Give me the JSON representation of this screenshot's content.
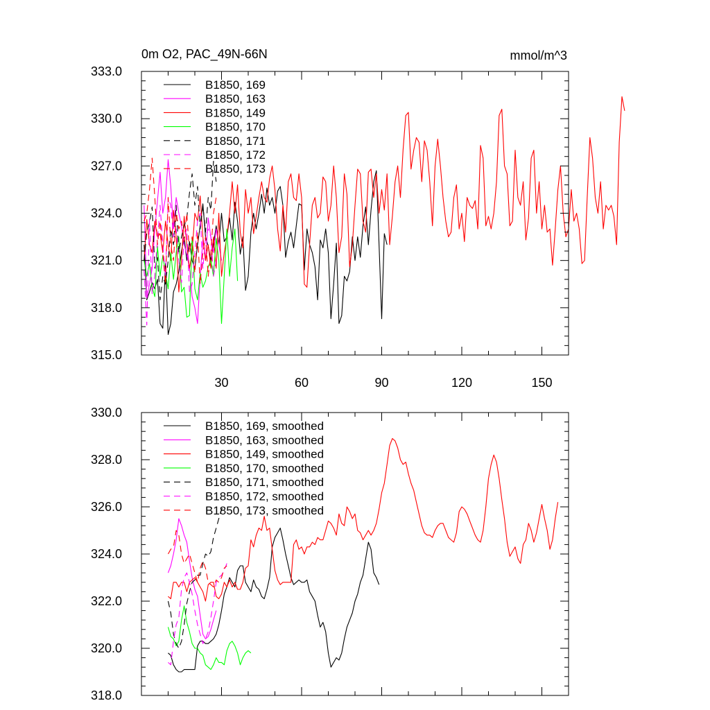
{
  "chart_data": [
    {
      "type": "line",
      "title": "0m O2, PAC_49N-66N",
      "units": "mmol/m^3",
      "xlim": [
        0,
        160
      ],
      "ylim": [
        315,
        333
      ],
      "x_ticks": [
        30,
        60,
        90,
        120,
        150
      ],
      "y_ticks": [
        315,
        318,
        321,
        324,
        327,
        330,
        333
      ],
      "y_tick_labels": [
        "315.0",
        "318.0",
        "321.0",
        "324.0",
        "327.0",
        "330.0",
        "333.0"
      ],
      "show_x_labels": true,
      "legend_position": "top-left",
      "grid": false,
      "series": [
        {
          "name": "B1850, 169",
          "color": "#000000",
          "dash": "solid",
          "x0": 1,
          "values": [
            322.0,
            318.5,
            319.0,
            319.6,
            319.2,
            319.8,
            317.0,
            316.7,
            320.8,
            316.3,
            317.0,
            319.0,
            319.5,
            320.3,
            321.6,
            322.5,
            321.0,
            322.2,
            321.0,
            320.5,
            322.0,
            323.2,
            324.6,
            322.5,
            321.9,
            321.0,
            322.0,
            323.2,
            322.0,
            324.0,
            322.2,
            322.5,
            323.7,
            322.3,
            324.7,
            323.5,
            321.4,
            322.5,
            319.1,
            320.0,
            322.8,
            324.0,
            323.0,
            324.0,
            325.2,
            324.0,
            325.6,
            324.5,
            325.0,
            324.0,
            325.4,
            325.7,
            324.5,
            321.2,
            322.2,
            322.8,
            321.8,
            323.2,
            324.6,
            324.5,
            320.4,
            323.0,
            322.0,
            321.5,
            320.6,
            318.5,
            322.3,
            321.8,
            323.0,
            321.5,
            317.3,
            319.5,
            322.1,
            317.0,
            317.5,
            320.0,
            319.7,
            320.3,
            322.5,
            321.0,
            322.5,
            321.2,
            323.2,
            324.4,
            322.0,
            324.2,
            326.0,
            326.7,
            322.0,
            317.3,
            322.7,
            322.0
          ]
        },
        {
          "name": "B1850, 163",
          "color": "#ff00ff",
          "dash": "solid",
          "x0": 1,
          "values": [
            324.5,
            318.6,
            319.5,
            320.5,
            323.0,
            324.8,
            326.6,
            324.0,
            325.0,
            327.4,
            325.7,
            323.0,
            325.0,
            324.0,
            323.2,
            322.0,
            321.4,
            320.5,
            318.7,
            318.0,
            317.0,
            320.0,
            322.3,
            321.0,
            323.7,
            322.5,
            321.5,
            323.0,
            322.0,
            321.0
          ]
        },
        {
          "name": "B1850, 149",
          "color": "#ff0000",
          "dash": "solid",
          "x0": 1,
          "values": [
            321.0,
            323.6,
            322.0,
            321.5,
            323.5,
            322.5,
            322.7,
            321.5,
            323.5,
            322.0,
            321.0,
            324.2,
            322.5,
            319.0,
            321.0,
            323.8,
            322.0,
            320.5,
            321.5,
            324.0,
            323.5,
            325.1,
            322.5,
            321.0,
            322.0,
            320.5,
            322.5,
            320.5,
            324.0,
            320.0,
            321.5,
            322.5,
            324.0,
            326.0,
            324.0,
            325.8,
            322.8,
            321.8,
            325.5,
            324.0,
            325.0,
            322.7,
            323.8,
            325.0,
            326.0,
            325.0,
            324.7,
            326.2,
            327.0,
            325.5,
            323.0,
            321.6,
            324.5,
            322.8,
            326.0,
            326.5,
            325.0,
            324.8,
            326.5,
            325.0,
            319.5,
            319.3,
            322.0,
            324.5,
            325.0,
            323.7,
            324.0,
            326.3,
            326.0,
            323.5,
            324.5,
            327.0,
            325.0,
            321.5,
            322.5,
            326.5,
            325.2,
            320.6,
            322.0,
            324.5,
            326.8,
            326.5,
            323.5,
            322.8,
            326.6,
            326.8,
            325.0,
            326.5,
            324.0,
            325.5,
            324.2,
            326.5,
            322.0,
            323.8,
            326.0,
            327.0,
            325.0,
            328.0,
            330.2,
            330.4,
            326.8,
            328.0,
            328.8,
            328.5,
            326.0,
            328.6,
            328.0,
            326.0,
            323.2,
            327.0,
            328.7,
            327.0,
            325.0,
            323.5,
            322.5,
            322.8,
            325.0,
            325.8,
            323.0,
            324.0,
            322.2,
            325.0,
            324.5,
            324.3,
            324.8,
            323.0,
            328.3,
            327.5,
            323.2,
            323.8,
            323.0,
            324.0,
            326.0,
            330.2,
            330.6,
            327.0,
            326.5,
            323.2,
            323.5,
            328.0,
            325.0,
            324.5,
            326.0,
            322.3,
            323.7,
            327.5,
            328.0,
            324.0,
            326.0,
            323.0,
            324.5,
            322.8,
            323.0,
            320.7,
            323.0,
            325.5,
            327.0,
            324.0,
            322.5,
            323.0,
            325.5,
            323.5,
            324.0,
            323.0,
            320.8,
            321.0,
            325.0,
            328.8,
            327.5,
            325.0,
            324.0,
            326.0,
            323.0,
            324.5,
            324.2,
            324.5,
            323.8,
            322.0,
            328.5,
            331.4,
            330.5
          ]
        },
        {
          "name": "B1850, 170",
          "color": "#00ff00",
          "dash": "solid",
          "x0": 1,
          "values": [
            321.0,
            320.0,
            320.8,
            319.3,
            318.7,
            321.9,
            320.0,
            321.3,
            320.2,
            319.2,
            321.5,
            319.8,
            321.5,
            322.5,
            319.0,
            319.3,
            317.4,
            317.5,
            322.5,
            319.2,
            318.5,
            320.2,
            319.3,
            319.7,
            320.6,
            321.0,
            320.0,
            322.4,
            321.0,
            317.0,
            320.0,
            323.0,
            320.0,
            321.8,
            323.0,
            319.7
          ]
        },
        {
          "name": "B1850, 171",
          "color": "#000000",
          "dash": "dash",
          "x0": 1,
          "values": [
            321.0,
            322.8,
            323.4,
            324.4,
            320.5,
            321.2,
            318.5,
            320.0,
            319.5,
            321.0,
            323.0,
            322.0,
            324.5,
            321.5,
            322.5,
            323.2,
            323.7,
            325.3,
            326.5,
            324.5,
            325.7,
            323.0,
            324.5,
            322.8,
            325.0,
            324.2,
            327.3,
            326.0
          ]
        },
        {
          "name": "B1850, 172",
          "color": "#ff00ff",
          "dash": "dash",
          "x0": 1,
          "values": [
            320.4,
            316.9,
            323.6,
            318.9,
            320.0,
            322.3,
            324.5,
            322.0,
            320.0,
            325.0,
            324.5,
            322.5,
            323.0,
            321.0,
            319.6,
            322.5,
            323.0,
            319.0,
            319.5,
            321.5,
            323.5,
            324.0,
            320.5,
            322.5,
            323.0,
            322.5,
            320.0,
            321.0
          ]
        },
        {
          "name": "B1850, 173",
          "color": "#ff0000",
          "dash": "dash",
          "x0": 1,
          "values": [
            323.5,
            324.0,
            325.5,
            327.5,
            325.0,
            322.0,
            323.5,
            321.5,
            319.5,
            325.0,
            322.0,
            321.0,
            324.0,
            323.0,
            323.5,
            322.2,
            324.0,
            321.5,
            322.5,
            320.2,
            322.8,
            319.5,
            321.5,
            322.5,
            320.0,
            321.5,
            324.0,
            325.0
          ]
        }
      ]
    },
    {
      "type": "line",
      "xlim": [
        0,
        160
      ],
      "ylim": [
        318,
        330
      ],
      "x_ticks": [
        30,
        60,
        90,
        120,
        150
      ],
      "y_ticks": [
        318,
        320,
        322,
        324,
        326,
        328,
        330
      ],
      "y_tick_labels": [
        "318.0",
        "320.0",
        "322.0",
        "324.0",
        "326.0",
        "328.0",
        "330.0"
      ],
      "show_x_labels": false,
      "legend_position": "top-left",
      "grid": false,
      "series": [
        {
          "name": "B1850, 169, smoothed",
          "color": "#000000",
          "dash": "solid",
          "x0": 10,
          "values": [
            319.8,
            319.7,
            319.3,
            319.1,
            319.0,
            319.0,
            319.1,
            319.1,
            319.1,
            319.1,
            319.1,
            320.1,
            320.3,
            320.3,
            320.2,
            320.2,
            320.3,
            320.4,
            320.6,
            321.0,
            321.6,
            322.3,
            322.6,
            323.0,
            322.8,
            322.6,
            323.3,
            323.5,
            323.5,
            322.8,
            322.6,
            322.4,
            322.9,
            322.6,
            322.5,
            322.2,
            322.1,
            322.5,
            323.0,
            324.3,
            324.7,
            324.9,
            325.1,
            324.6,
            324.0,
            323.5,
            323.0,
            322.7,
            322.8,
            322.9,
            322.8,
            322.8,
            322.9,
            322.4,
            322.2,
            322.0,
            321.4,
            320.9,
            321.1,
            320.7,
            319.8,
            319.2,
            319.4,
            319.6,
            319.5,
            319.8,
            320.4,
            320.9,
            321.2,
            321.5,
            322.0,
            322.3,
            322.8,
            323.1,
            323.8,
            324.5,
            324.2,
            323.2,
            323.0,
            322.7
          ]
        },
        {
          "name": "B1850, 163, smoothed",
          "color": "#ff00ff",
          "dash": "solid",
          "x0": 10,
          "values": [
            323.2,
            323.5,
            324.0,
            324.6,
            325.5,
            325.2,
            324.8,
            324.5,
            323.7,
            323.0,
            322.5,
            322.2,
            321.4,
            320.6,
            320.4,
            320.5,
            320.8,
            321.2,
            321.6
          ]
        },
        {
          "name": "B1850, 149, smoothed",
          "color": "#ff0000",
          "dash": "solid",
          "x0": 10,
          "values": [
            322.2,
            322.1,
            322.8,
            322.8,
            322.6,
            322.8,
            322.8,
            322.4,
            322.8,
            322.9,
            323.0,
            322.8,
            322.6,
            322.4,
            322.0,
            322.7,
            322.8,
            322.8,
            322.2,
            322.1,
            322.3,
            322.8,
            322.6,
            322.9,
            322.6,
            322.8,
            322.5,
            322.5,
            322.8,
            323.4,
            323.5,
            324.6,
            324.3,
            324.8,
            325.1,
            325.0,
            325.6,
            325.0,
            325.1,
            324.2,
            323.3,
            322.9,
            322.7,
            322.8,
            322.8,
            322.8,
            322.8,
            324.4,
            324.6,
            324.2,
            324.3,
            324.0,
            324.3,
            324.3,
            324.5,
            324.4,
            324.7,
            324.6,
            324.6,
            325.0,
            325.4,
            325.3,
            325.1,
            324.8,
            325.7,
            325.3,
            325.2,
            326.0,
            325.8,
            325.5,
            325.7,
            325.0,
            324.9,
            324.6,
            324.8,
            325.0,
            324.8,
            325.0,
            325.3,
            325.9,
            326.6,
            327.0,
            327.8,
            328.6,
            328.9,
            328.8,
            328.5,
            328.0,
            327.8,
            327.9,
            327.4,
            327.0,
            326.7,
            326.2,
            325.7,
            325.2,
            324.9,
            324.8,
            324.8,
            324.7,
            325.0,
            325.2,
            325.3,
            325.3,
            325.0,
            324.7,
            324.6,
            324.5,
            324.9,
            325.8,
            326.0,
            325.9,
            325.7,
            325.4,
            325.1,
            324.8,
            324.6,
            324.5,
            325.0,
            326.0,
            327.2,
            327.8,
            328.2,
            327.9,
            327.2,
            326.3,
            325.5,
            324.5,
            323.9,
            324.1,
            324.3,
            323.8,
            323.6,
            324.4,
            324.6,
            325.3,
            325.0,
            324.5,
            324.9,
            325.5,
            326.1,
            325.5,
            325.0,
            324.2,
            324.6,
            325.5,
            326.2
          ]
        },
        {
          "name": "B1850, 170, smoothed",
          "color": "#00ff00",
          "dash": "solid",
          "x0": 10,
          "values": [
            320.9,
            320.5,
            320.4,
            320.1,
            320.3,
            321.2,
            321.8,
            321.1,
            320.7,
            320.2,
            320.0,
            320.0,
            319.8,
            319.7,
            319.3,
            319.2,
            319.1,
            319.3,
            319.6,
            319.4,
            319.4,
            319.3,
            319.9,
            320.2,
            320.3,
            320.1,
            319.8,
            319.3,
            319.6,
            319.8,
            319.9,
            319.8
          ]
        },
        {
          "name": "B1850, 171, smoothed",
          "color": "#000000",
          "dash": "dash",
          "x0": 10,
          "values": [
            322.0,
            321.5,
            320.6,
            320.2,
            320.0,
            320.3,
            321.0,
            321.9,
            322.4,
            322.8,
            322.9,
            323.1,
            323.1,
            323.6,
            324.0,
            323.9,
            324.1,
            324.7,
            325.1,
            325.5,
            325.9,
            326.0
          ]
        },
        {
          "name": "B1850, 172, smoothed",
          "color": "#ff00ff",
          "dash": "dash",
          "x0": 10,
          "values": [
            319.4,
            319.3,
            320.3,
            321.0,
            321.3,
            322.5,
            323.0,
            323.2,
            322.8,
            322.3,
            321.6,
            321.0,
            320.6,
            320.2,
            320.4,
            320.7,
            321.3,
            322.0,
            322.8,
            323.0,
            323.1,
            323.3,
            323.6
          ]
        },
        {
          "name": "B1850, 173, smoothed",
          "color": "#ff0000",
          "dash": "dash",
          "x0": 10,
          "values": [
            324.0,
            324.2,
            324.3,
            325.0,
            324.8,
            324.0,
            323.6,
            323.8,
            324.0,
            323.6,
            323.2,
            322.8,
            323.4,
            323.7,
            323.4,
            322.8,
            322.7,
            322.6,
            322.9,
            322.8,
            323.0,
            323.4,
            323.5
          ]
        }
      ]
    }
  ]
}
